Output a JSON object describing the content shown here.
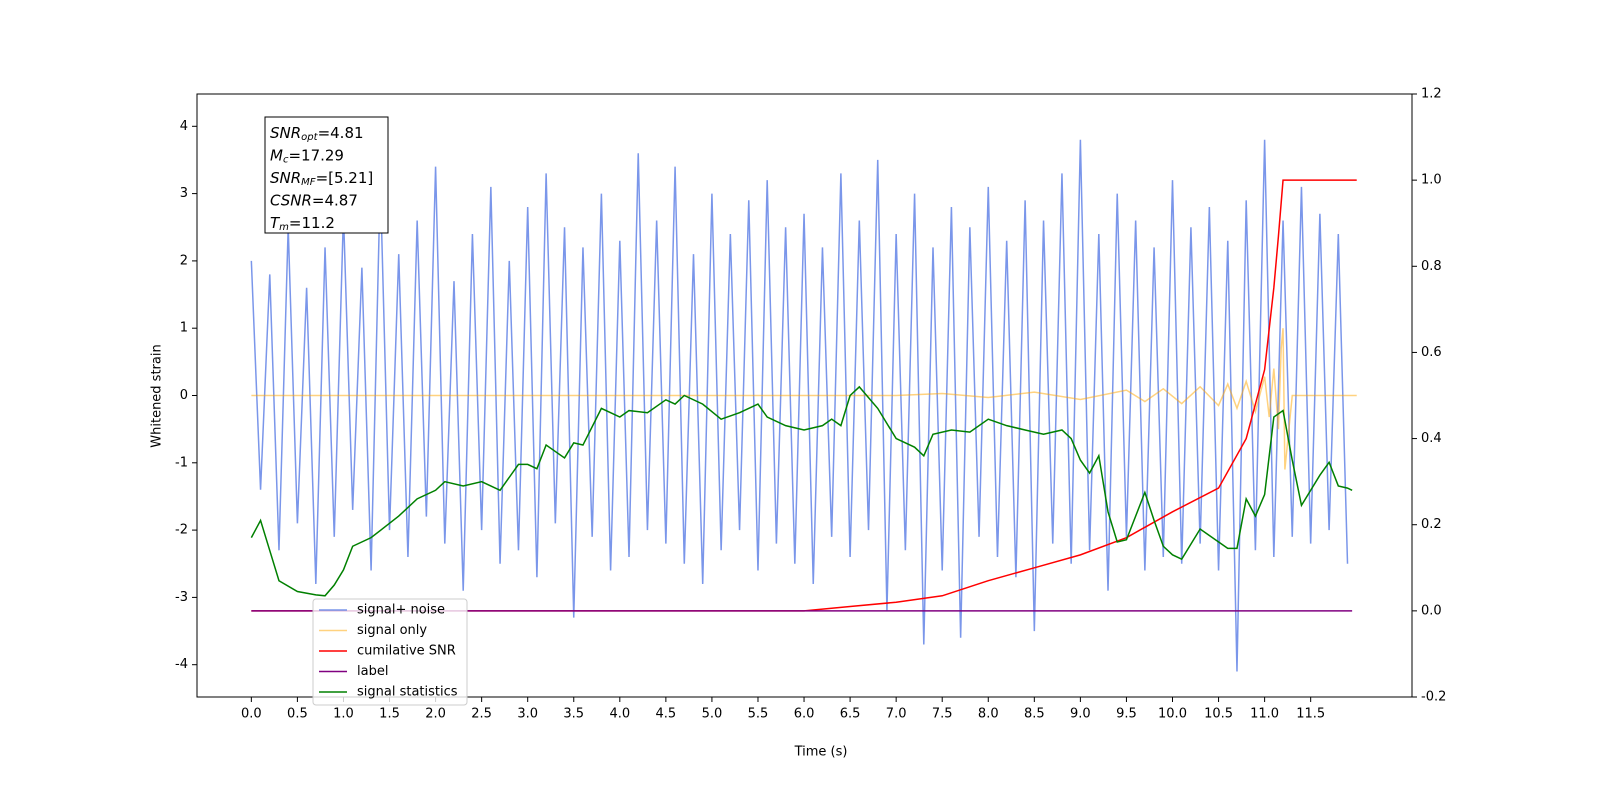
{
  "chart_data": {
    "type": "line",
    "xlabel": "Time (s)",
    "ylabel": "Whitened strain",
    "xlim": [
      -0.59,
      12.6
    ],
    "ylim": [
      -4.48,
      4.48
    ],
    "y2lim": [
      -0.2,
      1.2
    ],
    "xticks": [
      {
        "value": 0,
        "label": "0.0"
      },
      0.5,
      {
        "value": 1,
        "label": "1.0"
      },
      1.5,
      {
        "value": 2,
        "label": "2.0"
      },
      2.5,
      {
        "value": 3,
        "label": "3.0"
      },
      3.5,
      {
        "value": 4,
        "label": "4.0"
      },
      4.5,
      {
        "value": 5,
        "label": "5.0"
      },
      5.5,
      {
        "value": 6,
        "label": "6.0"
      },
      6.5,
      {
        "value": 7,
        "label": "7.0"
      },
      7.5,
      {
        "value": 8,
        "label": "8.0"
      },
      8.5,
      {
        "value": 9,
        "label": "9.0"
      },
      9.5,
      {
        "value": 10,
        "label": "10.0"
      },
      10.5,
      {
        "value": 11,
        "label": "11.0"
      },
      11.5
    ],
    "yticks": [
      -4,
      -3,
      -2,
      -1,
      0,
      1,
      2,
      3,
      4
    ],
    "y2ticks": [
      -0.2,
      {
        "value": 0,
        "label": "0.0"
      },
      0.2,
      0.4,
      0.6,
      0.8,
      {
        "value": 1,
        "label": "1.0"
      },
      1.2
    ],
    "stats": [
      {
        "symbol": "SNR",
        "sub": "opt",
        "text": "=4.81"
      },
      {
        "symbol": "M",
        "sub": "c",
        "text": "=17.29"
      },
      {
        "symbol": "SNR",
        "sub": "MF",
        "text": "=[5.21]"
      },
      {
        "symbol": "CSNR",
        "text": "=4.87"
      },
      {
        "symbol": "T",
        "sub": "m",
        "text": "=11.2"
      }
    ],
    "series": [
      {
        "name": "signal+ noise",
        "color": "#4169e1",
        "alpha": 0.7,
        "axis": "y",
        "x": [
          0,
          0.1,
          0.2,
          0.3,
          0.4,
          0.5,
          0.6,
          0.7,
          0.8,
          0.9,
          1,
          1.1,
          1.2,
          1.3,
          1.4,
          1.5,
          1.6,
          1.7,
          1.8,
          1.9,
          2,
          2.1,
          2.2,
          2.3,
          2.4,
          2.5,
          2.6,
          2.7,
          2.8,
          2.9,
          3,
          3.1,
          3.2,
          3.3,
          3.4,
          3.5,
          3.6,
          3.7,
          3.8,
          3.9,
          4,
          4.1,
          4.2,
          4.3,
          4.4,
          4.5,
          4.6,
          4.7,
          4.8,
          4.9,
          5,
          5.1,
          5.2,
          5.3,
          5.4,
          5.5,
          5.6,
          5.7,
          5.8,
          5.9,
          6,
          6.1,
          6.2,
          6.3,
          6.4,
          6.5,
          6.6,
          6.7,
          6.8,
          6.9,
          7,
          7.1,
          7.2,
          7.3,
          7.4,
          7.5,
          7.6,
          7.7,
          7.8,
          7.9,
          8,
          8.1,
          8.2,
          8.3,
          8.4,
          8.5,
          8.6,
          8.7,
          8.8,
          8.9,
          9,
          9.1,
          9.2,
          9.3,
          9.4,
          9.5,
          9.6,
          9.7,
          9.8,
          9.9,
          10,
          10.1,
          10.2,
          10.3,
          10.4,
          10.5,
          10.6,
          10.7,
          10.8,
          10.9,
          11,
          11.1,
          11.2,
          11.3,
          11.4,
          11.5,
          11.6,
          11.7,
          11.8,
          11.9
        ],
        "values": [
          2.0,
          -1.4,
          1.8,
          -2.3,
          2.5,
          -1.9,
          1.6,
          -2.8,
          2.2,
          -2.1,
          2.7,
          -1.7,
          1.9,
          -2.6,
          3.2,
          -2.0,
          2.1,
          -2.4,
          2.6,
          -1.8,
          3.4,
          -2.2,
          1.7,
          -2.9,
          2.4,
          -2.0,
          3.1,
          -2.5,
          2.0,
          -2.3,
          2.8,
          -2.7,
          3.3,
          -1.9,
          2.5,
          -3.3,
          2.2,
          -2.1,
          3.0,
          -2.6,
          2.3,
          -2.4,
          3.6,
          -2.0,
          2.6,
          -2.2,
          3.4,
          -2.5,
          2.1,
          -2.8,
          3.0,
          -2.3,
          2.4,
          -2.0,
          2.9,
          -2.6,
          3.2,
          -2.2,
          2.5,
          -2.5,
          2.7,
          -2.8,
          2.2,
          -2.1,
          3.3,
          -2.4,
          2.6,
          -2.0,
          3.5,
          -3.2,
          2.4,
          -2.3,
          3.0,
          -3.7,
          2.2,
          -2.6,
          2.8,
          -3.6,
          2.5,
          -2.1,
          3.1,
          -2.4,
          2.3,
          -2.7,
          2.9,
          -3.5,
          2.6,
          -2.2,
          3.3,
          -2.5,
          3.8,
          -2.3,
          2.4,
          -2.9,
          3.0,
          -2.1,
          2.6,
          -2.6,
          2.2,
          -2.4,
          3.2,
          -2.5,
          2.5,
          -2.2,
          2.8,
          -2.6,
          2.3,
          -4.1,
          2.9,
          -2.3,
          3.8,
          -2.4,
          2.6,
          -2.1,
          3.1,
          -2.2,
          2.7,
          -2.0,
          2.4,
          -2.5
        ]
      },
      {
        "name": "signal only",
        "color": "#ffa500",
        "alpha": 0.5,
        "axis": "y",
        "x": [
          0,
          7,
          7.5,
          8,
          8.5,
          9,
          9.5,
          9.7,
          9.9,
          10.1,
          10.3,
          10.5,
          10.6,
          10.7,
          10.8,
          10.9,
          11.0,
          11.05,
          11.1,
          11.15,
          11.18,
          11.2,
          11.22,
          11.3,
          12
        ],
        "values": [
          0,
          0,
          0.03,
          -0.03,
          0.05,
          -0.06,
          0.08,
          -0.09,
          0.1,
          -0.12,
          0.13,
          -0.15,
          0.17,
          -0.19,
          0.21,
          -0.24,
          0.28,
          -0.32,
          0.4,
          -0.5,
          0.7,
          1.0,
          -1.1,
          0,
          0
        ]
      },
      {
        "name": "cumilative SNR",
        "color": "#ff0000",
        "alpha": 1,
        "axis": "y2",
        "x": [
          0,
          6,
          6.5,
          7,
          7.5,
          8,
          8.5,
          9,
          9.5,
          10,
          10.5,
          10.8,
          11,
          11.1,
          11.15,
          11.2,
          12
        ],
        "values": [
          0,
          0,
          0.01,
          0.02,
          0.035,
          0.07,
          0.1,
          0.13,
          0.17,
          0.23,
          0.285,
          0.4,
          0.56,
          0.75,
          0.87,
          1.0,
          1.0
        ]
      },
      {
        "name": "label",
        "color": "#800080",
        "alpha": 1,
        "axis": "y2",
        "x": [
          0,
          11.95
        ],
        "values": [
          0,
          0
        ]
      },
      {
        "name": "signal statistics",
        "color": "#008000",
        "alpha": 1,
        "axis": "y2",
        "x": [
          0,
          0.1,
          0.2,
          0.3,
          0.5,
          0.7,
          0.8,
          0.9,
          1.0,
          1.1,
          1.3,
          1.6,
          1.8,
          2.0,
          2.1,
          2.3,
          2.5,
          2.7,
          2.9,
          3.0,
          3.1,
          3.2,
          3.4,
          3.5,
          3.6,
          3.8,
          3.9,
          4.0,
          4.1,
          4.3,
          4.5,
          4.6,
          4.7,
          4.9,
          5.1,
          5.3,
          5.5,
          5.6,
          5.8,
          6.0,
          6.2,
          6.3,
          6.4,
          6.5,
          6.6,
          6.8,
          7.0,
          7.2,
          7.3,
          7.4,
          7.6,
          7.8,
          8.0,
          8.2,
          8.4,
          8.6,
          8.8,
          8.9,
          9.0,
          9.1,
          9.2,
          9.3,
          9.4,
          9.5,
          9.6,
          9.7,
          9.8,
          9.9,
          10.0,
          10.1,
          10.3,
          10.4,
          10.6,
          10.7,
          10.8,
          10.9,
          11.0,
          11.1,
          11.2,
          11.3,
          11.4,
          11.6,
          11.7,
          11.8,
          11.9,
          11.95
        ],
        "values": [
          0.17,
          0.21,
          0.14,
          0.07,
          0.045,
          0.037,
          0.035,
          0.06,
          0.095,
          0.15,
          0.17,
          0.22,
          0.26,
          0.28,
          0.3,
          0.29,
          0.3,
          0.28,
          0.34,
          0.34,
          0.33,
          0.385,
          0.355,
          0.39,
          0.385,
          0.47,
          0.46,
          0.45,
          0.465,
          0.46,
          0.49,
          0.48,
          0.5,
          0.48,
          0.445,
          0.46,
          0.48,
          0.45,
          0.43,
          0.42,
          0.43,
          0.445,
          0.43,
          0.5,
          0.52,
          0.47,
          0.4,
          0.38,
          0.36,
          0.41,
          0.42,
          0.415,
          0.445,
          0.43,
          0.42,
          0.41,
          0.42,
          0.4,
          0.35,
          0.32,
          0.36,
          0.23,
          0.16,
          0.165,
          0.22,
          0.275,
          0.21,
          0.15,
          0.13,
          0.12,
          0.19,
          0.175,
          0.145,
          0.145,
          0.26,
          0.22,
          0.27,
          0.45,
          0.465,
          0.35,
          0.245,
          0.315,
          0.345,
          0.29,
          0.285,
          0.28
        ]
      }
    ]
  }
}
